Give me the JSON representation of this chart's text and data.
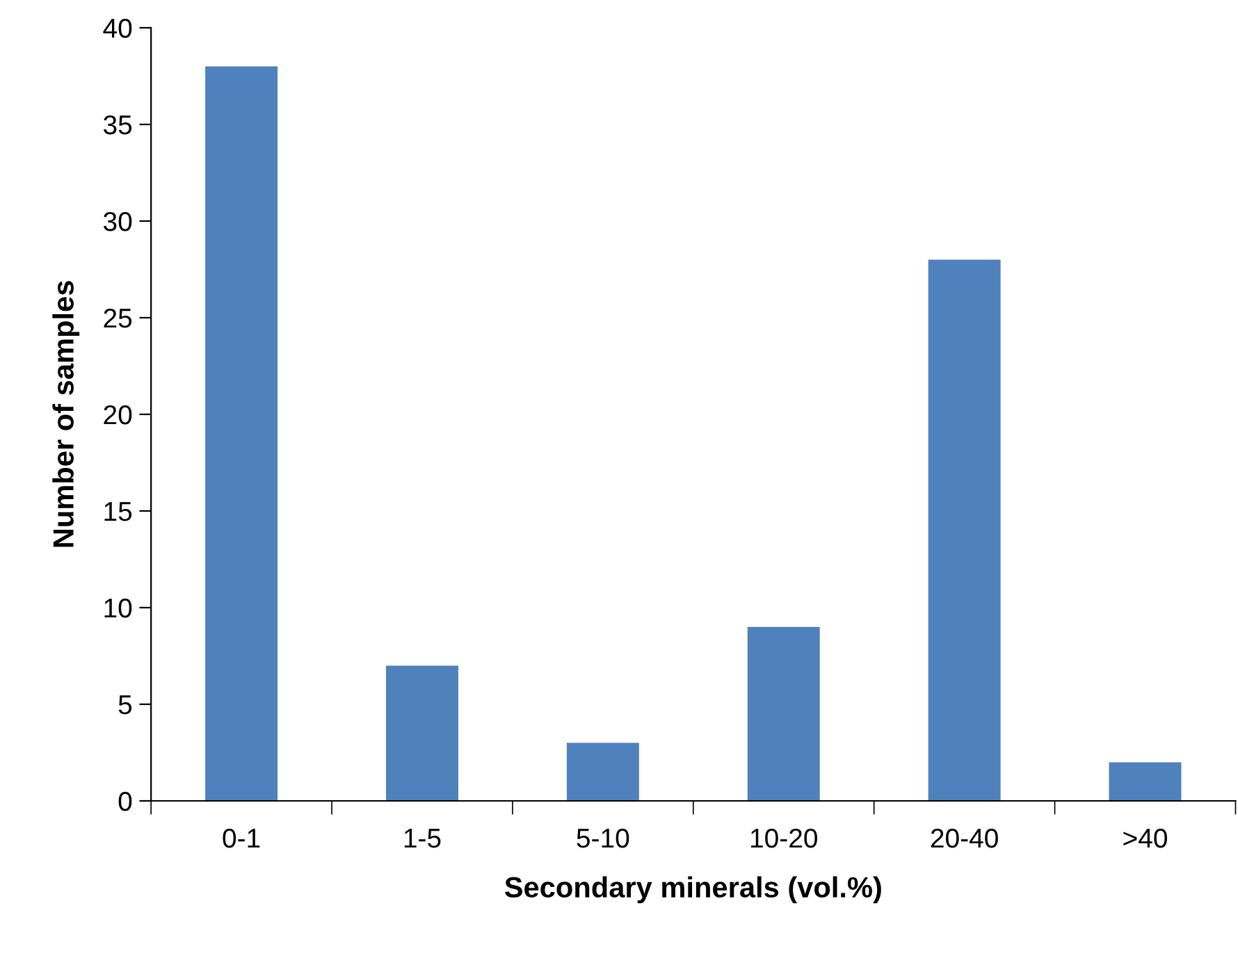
{
  "chart_data": {
    "type": "bar",
    "xlabel": "Secondary minerals (vol.%)",
    "ylabel": "Number of samples",
    "categories": [
      "0-1",
      "1-5",
      "5-10",
      "10-20",
      "20-40",
      ">40"
    ],
    "values": [
      38,
      7,
      3,
      9,
      28,
      2
    ],
    "color": "#4f81bd",
    "ylim": [
      0,
      40
    ],
    "yticks": [
      0,
      5,
      10,
      15,
      20,
      25,
      30,
      35,
      40
    ],
    "grid": false,
    "legend": false
  }
}
